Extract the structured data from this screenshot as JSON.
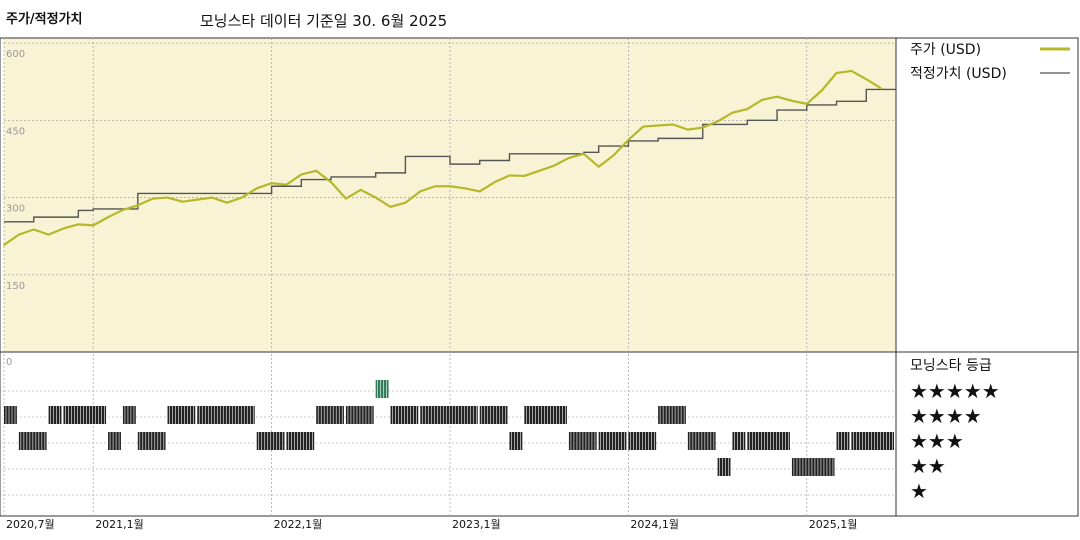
{
  "header": {
    "left_title": "주가/적정가치",
    "center_title": "모닝스타 데이터 기준일 30. 6월 2025"
  },
  "chart_data": {
    "type": "line",
    "title": "주가/적정가치",
    "subtitle": "모닝스타 데이터 기준일 30. 6월 2025",
    "x_range": [
      "2020-07",
      "2025-07"
    ],
    "x_tick_labels": [
      "2020,7월",
      "2021,1월",
      "2022,1월",
      "2023,1월",
      "2024,1월",
      "2025,1월"
    ],
    "x_tick_dates": [
      "2020-07",
      "2021-01",
      "2022-01",
      "2023-01",
      "2024-01",
      "2025-01"
    ],
    "y_tick_labels": [
      "600",
      "450",
      "300",
      "150"
    ],
    "y_tick_values": [
      600,
      450,
      300,
      150
    ],
    "ylim": [
      0,
      610
    ],
    "grid": true,
    "legend_position": "right",
    "colors": {
      "price": "#b5b82a",
      "fair_value": "#555555",
      "background": "#f8f3d4",
      "highlight": "#2e7d57"
    },
    "series": [
      {
        "name": "주가 (USD)",
        "x": [
          "2020-07",
          "2020-08",
          "2020-09",
          "2020-10",
          "2020-11",
          "2020-12",
          "2021-01",
          "2021-02",
          "2021-03",
          "2021-04",
          "2021-05",
          "2021-06",
          "2021-07",
          "2021-08",
          "2021-09",
          "2021-10",
          "2021-11",
          "2021-12",
          "2022-01",
          "2022-02",
          "2022-03",
          "2022-04",
          "2022-05",
          "2022-06",
          "2022-07",
          "2022-08",
          "2022-09",
          "2022-10",
          "2022-11",
          "2022-12",
          "2023-01",
          "2023-02",
          "2023-03",
          "2023-04",
          "2023-05",
          "2023-06",
          "2023-07",
          "2023-08",
          "2023-09",
          "2023-10",
          "2023-11",
          "2023-12",
          "2024-01",
          "2024-02",
          "2024-03",
          "2024-04",
          "2024-05",
          "2024-06",
          "2024-07",
          "2024-08",
          "2024-09",
          "2024-10",
          "2024-11",
          "2024-12",
          "2025-01",
          "2025-02",
          "2025-03",
          "2025-04",
          "2025-05",
          "2025-06"
        ],
        "values": [
          208,
          228,
          238,
          228,
          240,
          248,
          246,
          262,
          276,
          285,
          298,
          300,
          292,
          296,
          300,
          290,
          300,
          318,
          328,
          325,
          345,
          352,
          330,
          298,
          315,
          300,
          282,
          290,
          312,
          322,
          322,
          318,
          312,
          330,
          343,
          342,
          352,
          362,
          377,
          385,
          360,
          382,
          412,
          438,
          440,
          442,
          432,
          436,
          448,
          465,
          472,
          490,
          496,
          488,
          482,
          508,
          542,
          546,
          530,
          512
        ]
      },
      {
        "name": "적정가치 (USD)",
        "x": [
          "2020-07",
          "2020-09",
          "2020-12",
          "2021-01",
          "2021-04",
          "2022-01",
          "2022-03",
          "2022-05",
          "2022-08",
          "2022-10",
          "2023-01",
          "2023-03",
          "2023-05",
          "2023-06",
          "2023-10",
          "2023-11",
          "2024-01",
          "2024-03",
          "2024-06",
          "2024-09",
          "2024-11",
          "2025-01",
          "2025-03",
          "2025-05",
          "2025-07"
        ],
        "values": [
          253,
          262,
          275,
          278,
          308,
          322,
          335,
          340,
          348,
          380,
          365,
          372,
          385,
          385,
          388,
          400,
          410,
          415,
          442,
          450,
          470,
          480,
          487,
          510,
          510
        ]
      }
    ],
    "rating_legend_title": "모닝스타 등급",
    "rating_labels": [
      "★★★★★",
      "★★★★",
      "★★★",
      "★★",
      "★"
    ],
    "ratings": [
      {
        "from": "2020-07",
        "to": "2020-08",
        "stars": 4
      },
      {
        "from": "2020-08",
        "to": "2020-10",
        "stars": 3
      },
      {
        "from": "2020-10",
        "to": "2020-11",
        "stars": 4
      },
      {
        "from": "2020-11",
        "to": "2021-02",
        "stars": 4
      },
      {
        "from": "2021-02",
        "to": "2021-03",
        "stars": 3
      },
      {
        "from": "2021-03",
        "to": "2021-04",
        "stars": 4
      },
      {
        "from": "2021-04",
        "to": "2021-06",
        "stars": 3
      },
      {
        "from": "2021-06",
        "to": "2021-08",
        "stars": 4
      },
      {
        "from": "2021-08",
        "to": "2021-12",
        "stars": 4
      },
      {
        "from": "2021-12",
        "to": "2022-02",
        "stars": 3
      },
      {
        "from": "2022-02",
        "to": "2022-04",
        "stars": 3
      },
      {
        "from": "2022-04",
        "to": "2022-06",
        "stars": 4
      },
      {
        "from": "2022-06",
        "to": "2022-08",
        "stars": 4
      },
      {
        "from": "2022-08",
        "to": "2022-09",
        "stars": 5
      },
      {
        "from": "2022-09",
        "to": "2022-11",
        "stars": 4
      },
      {
        "from": "2022-11",
        "to": "2023-03",
        "stars": 4
      },
      {
        "from": "2023-03",
        "to": "2023-05",
        "stars": 4
      },
      {
        "from": "2023-05",
        "to": "2023-06",
        "stars": 3
      },
      {
        "from": "2023-06",
        "to": "2023-09",
        "stars": 4
      },
      {
        "from": "2023-09",
        "to": "2023-11",
        "stars": 3
      },
      {
        "from": "2023-11",
        "to": "2024-01",
        "stars": 3
      },
      {
        "from": "2024-01",
        "to": "2024-03",
        "stars": 3
      },
      {
        "from": "2024-03",
        "to": "2024-05",
        "stars": 4
      },
      {
        "from": "2024-05",
        "to": "2024-07",
        "stars": 3
      },
      {
        "from": "2024-07",
        "to": "2024-08",
        "stars": 2
      },
      {
        "from": "2024-08",
        "to": "2024-09",
        "stars": 3
      },
      {
        "from": "2024-09",
        "to": "2024-12",
        "stars": 3
      },
      {
        "from": "2024-12",
        "to": "2025-03",
        "stars": 2
      },
      {
        "from": "2025-03",
        "to": "2025-04",
        "stars": 3
      },
      {
        "from": "2025-04",
        "to": "2025-07",
        "stars": 3
      }
    ]
  }
}
